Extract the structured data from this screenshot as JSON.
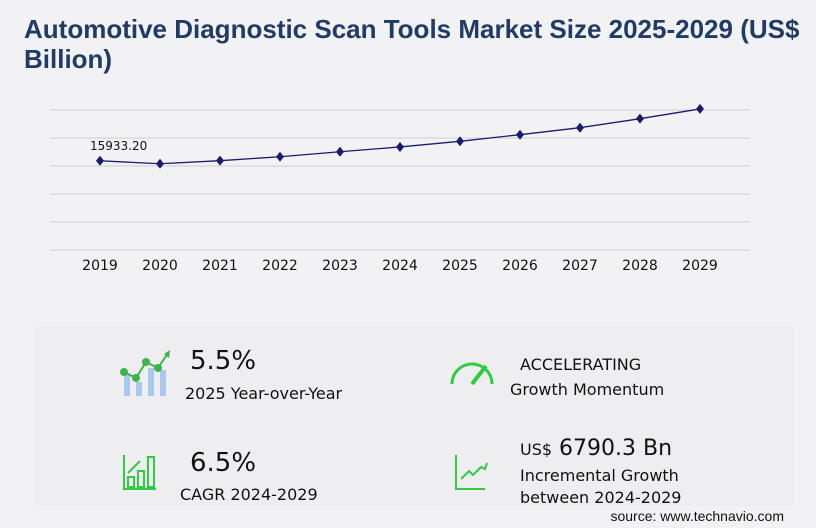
{
  "title": "Automotive Diagnostic Scan Tools Market Size 2025-2029 (US$ Billion)",
  "chart_data": {
    "type": "line",
    "title": "Automotive Diagnostic Scan Tools Market Size 2025-2029 (US$ Billion)",
    "categories": [
      "2019",
      "2020",
      "2021",
      "2022",
      "2023",
      "2024",
      "2025",
      "2026",
      "2027",
      "2028",
      "2029"
    ],
    "values": [
      15933.2,
      15400,
      15950,
      16650,
      17540,
      18400,
      19410,
      20590,
      21840,
      23450,
      25190
    ],
    "data_labels": [
      "15933.20",
      "",
      "",
      "",
      "",
      "",
      "",
      "",
      "",
      "",
      ""
    ],
    "ylim": [
      0,
      25000
    ],
    "grid": true,
    "line_color": "#1a1a6e"
  },
  "kpis": {
    "yoy_value": "5.5%",
    "yoy_label": "2025 Year-over-Year",
    "momentum_value": "ACCELERATING",
    "momentum_label": "Growth Momentum",
    "cagr_value": "6.5%",
    "cagr_label": "CAGR 2024-2029",
    "incr_prefix": "US$",
    "incr_value": "6790.3 Bn",
    "incr_label1": "Incremental Growth",
    "incr_label2": "between 2024-2029"
  },
  "source": "source: www.technavio.com",
  "colors": {
    "accent_green": "#2ecc40",
    "title": "#1f3b66"
  }
}
